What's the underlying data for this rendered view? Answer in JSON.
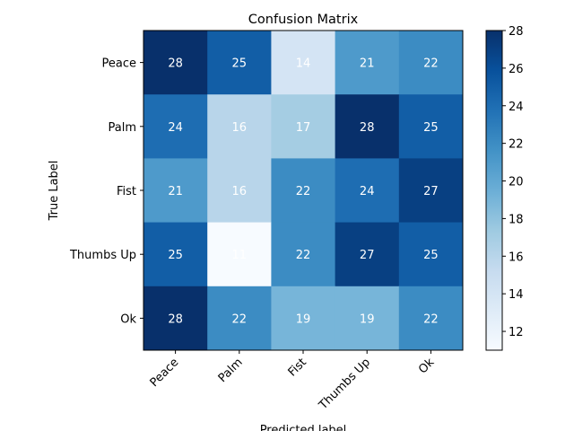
{
  "chart_data": {
    "type": "heatmap",
    "title": "Confusion Matrix",
    "xlabel": "Predicted label",
    "ylabel": "True Label",
    "x_categories": [
      "Peace",
      "Palm",
      "Fist",
      "Thumbs Up",
      "Ok"
    ],
    "y_categories": [
      "Peace",
      "Palm",
      "Fist",
      "Thumbs Up",
      "Ok"
    ],
    "values": [
      [
        28,
        25,
        14,
        21,
        22
      ],
      [
        24,
        16,
        17,
        28,
        25
      ],
      [
        21,
        16,
        22,
        24,
        27
      ],
      [
        25,
        11,
        22,
        27,
        25
      ],
      [
        28,
        22,
        19,
        19,
        22
      ]
    ],
    "colormap": "Blues",
    "colorbar": {
      "range": [
        11,
        28
      ],
      "ticks": [
        12,
        14,
        16,
        18,
        20,
        22,
        24,
        26,
        28
      ]
    },
    "cell_text_color": "#ffffff",
    "text_color": "#000000"
  }
}
